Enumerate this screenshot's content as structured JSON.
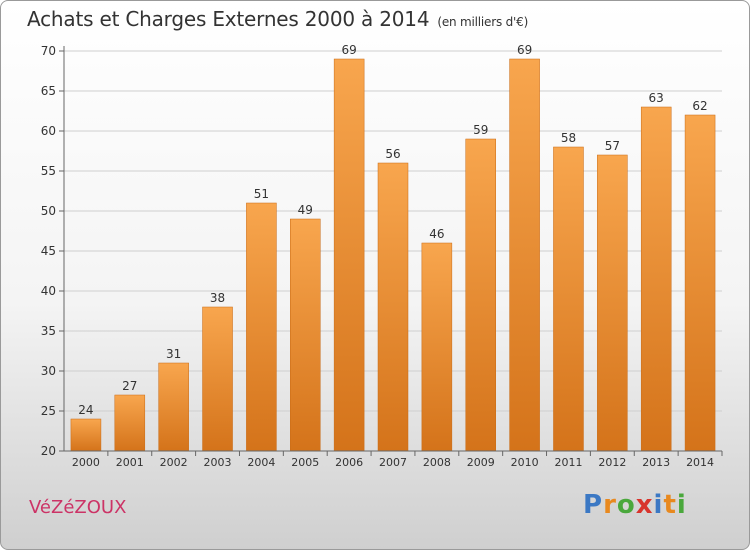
{
  "title": "Achats et Charges Externes 2000 à 2014",
  "title_unit": "(en milliers d'€)",
  "commune": "VéZéZOUX",
  "brand": {
    "letters": [
      "P",
      "r",
      "o",
      "x",
      "i",
      "t",
      "i"
    ],
    "colors": [
      "#3b78c4",
      "#e8891f",
      "#4aa83c",
      "#d8342c",
      "#3b78c4",
      "#e8891f",
      "#4aa83c"
    ]
  },
  "colors": {
    "bar_top": "#f8a64e",
    "bar_bottom": "#d4731a",
    "bar_edge": "#c86a14",
    "grid": "#cfcfcf",
    "axis": "#666666"
  },
  "chart_data": {
    "type": "bar",
    "title": "Achats et Charges Externes 2000 à 2014",
    "categories": [
      "2000",
      "2001",
      "2002",
      "2003",
      "2004",
      "2005",
      "2006",
      "2007",
      "2008",
      "2009",
      "2010",
      "2011",
      "2012",
      "2013",
      "2014"
    ],
    "values": [
      24,
      27,
      31,
      38,
      51,
      49,
      69,
      56,
      46,
      59,
      69,
      58,
      57,
      63,
      62
    ],
    "yticks": [
      20,
      25,
      30,
      35,
      40,
      45,
      50,
      55,
      60,
      65,
      70
    ],
    "ylim": [
      20,
      70
    ],
    "grid": true,
    "data_labels": true,
    "xlabel": "",
    "ylabel": ""
  }
}
